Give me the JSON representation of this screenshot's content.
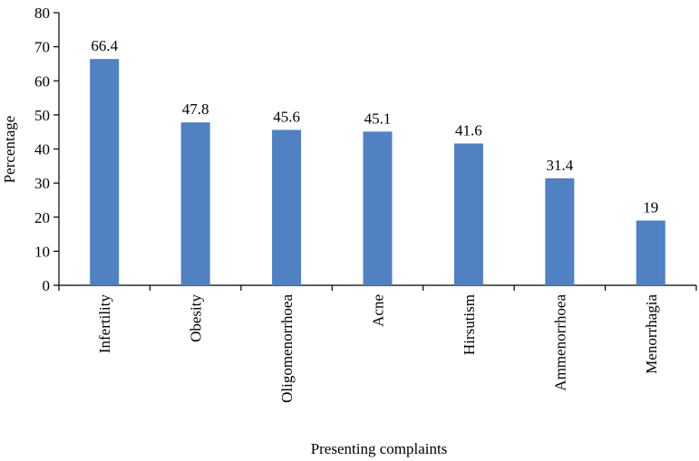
{
  "chart_data": {
    "type": "bar",
    "title": "",
    "xlabel": "Presenting complaints",
    "ylabel": "Percentage",
    "categories": [
      "Infertility",
      "Obesity",
      "Oligomenorrhoea",
      "Acne",
      "Hirsutism",
      "Ammenorrhoea",
      "Menorrhagia"
    ],
    "values": [
      66.4,
      47.8,
      45.6,
      45.1,
      41.6,
      31.4,
      19
    ],
    "data_labels": [
      "66.4",
      "47.8",
      "45.6",
      "45.1",
      "41.6",
      "31.4",
      "19"
    ],
    "yticks": [
      "0",
      "10",
      "20",
      "30",
      "40",
      "50",
      "60",
      "70",
      "80"
    ],
    "ylim": [
      0,
      80
    ],
    "grid": false,
    "legend": "none",
    "bar_color": "#4f81c3"
  }
}
